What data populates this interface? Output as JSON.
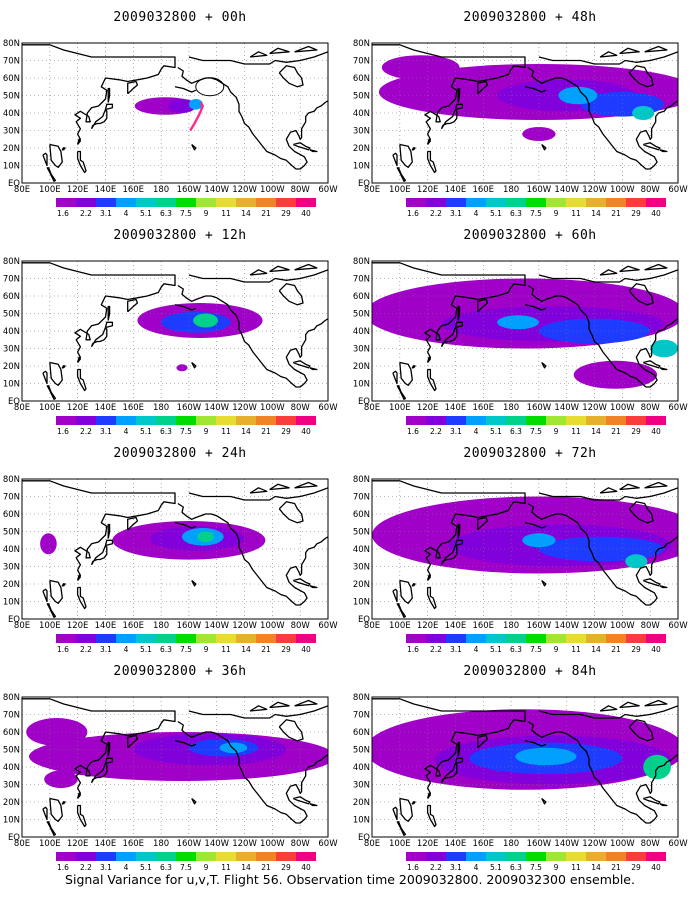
{
  "figure": {
    "caption": "Signal Variance for u,v,T. Flight 56. Observation time 2009032800. 2009032300 ensemble."
  },
  "panels": [
    {
      "title": "2009032800 + 00h",
      "lead_hours": 0
    },
    {
      "title": "2009032800 + 48h",
      "lead_hours": 48
    },
    {
      "title": "2009032800 + 12h",
      "lead_hours": 12
    },
    {
      "title": "2009032800 + 60h",
      "lead_hours": 60
    },
    {
      "title": "2009032800 + 24h",
      "lead_hours": 24
    },
    {
      "title": "2009032800 + 72h",
      "lead_hours": 72
    },
    {
      "title": "2009032800 + 36h",
      "lead_hours": 36
    },
    {
      "title": "2009032800 + 84h",
      "lead_hours": 84
    }
  ],
  "axes": {
    "lon_ticks": [
      "80E",
      "100E",
      "120E",
      "140E",
      "160E",
      "180",
      "160W",
      "140W",
      "120W",
      "100W",
      "80W",
      "60W"
    ],
    "lat_ticks": [
      "EQ",
      "10N",
      "20N",
      "30N",
      "40N",
      "50N",
      "60N",
      "70N",
      "80N"
    ],
    "lon_range": [
      80,
      300
    ],
    "lat_range": [
      0,
      80
    ],
    "grid": "dotted"
  },
  "colorbar": {
    "labels": [
      "1.6",
      "2.2",
      "3.1",
      "4",
      "5.1",
      "6.3",
      "7.5",
      "9",
      "11",
      "14",
      "21",
      "29",
      "40"
    ],
    "colors": [
      "#a000c8",
      "#8200dc",
      "#1e3cff",
      "#00a0ff",
      "#00c8c8",
      "#00d28c",
      "#00dc00",
      "#a0e632",
      "#e6dc32",
      "#e6af2d",
      "#f08228",
      "#fa3c3c",
      "#f00082"
    ]
  },
  "chart_data": {
    "type": "heatmap",
    "variable": "Signal Variance for u,v,T",
    "blobs": [
      [
        {
          "lon": 183,
          "lat": 44,
          "rx": 22,
          "ry": 5,
          "level": 0
        },
        {
          "lon": 195,
          "lat": 44,
          "rx": 10,
          "ry": 4,
          "level": 1
        },
        {
          "lon": 205,
          "lat": 45,
          "rx": 5,
          "ry": 3,
          "level": 3
        }
      ],
      [
        {
          "lon": 200,
          "lat": 52,
          "rx": 115,
          "ry": 16,
          "level": 0
        },
        {
          "lon": 115,
          "lat": 66,
          "rx": 28,
          "ry": 7,
          "level": 0
        },
        {
          "lon": 200,
          "lat": 28,
          "rx": 12,
          "ry": 4,
          "level": 0
        },
        {
          "lon": 220,
          "lat": 50,
          "rx": 50,
          "ry": 9,
          "level": 1
        },
        {
          "lon": 260,
          "lat": 45,
          "rx": 30,
          "ry": 7,
          "level": 2
        },
        {
          "lon": 228,
          "lat": 50,
          "rx": 14,
          "ry": 5,
          "level": 3
        },
        {
          "lon": 275,
          "lat": 40,
          "rx": 8,
          "ry": 4,
          "level": 4
        }
      ],
      [
        {
          "lon": 208,
          "lat": 46,
          "rx": 45,
          "ry": 10,
          "level": 0
        },
        {
          "lon": 205,
          "lat": 45,
          "rx": 25,
          "ry": 6,
          "level": 2
        },
        {
          "lon": 212,
          "lat": 46,
          "rx": 9,
          "ry": 4,
          "level": 5
        },
        {
          "lon": 195,
          "lat": 19,
          "rx": 4,
          "ry": 2,
          "level": 0
        }
      ],
      [
        {
          "lon": 190,
          "lat": 50,
          "rx": 115,
          "ry": 20,
          "level": 0
        },
        {
          "lon": 255,
          "lat": 15,
          "rx": 30,
          "ry": 8,
          "level": 0
        },
        {
          "lon": 210,
          "lat": 44,
          "rx": 80,
          "ry": 10,
          "level": 1
        },
        {
          "lon": 240,
          "lat": 40,
          "rx": 40,
          "ry": 7,
          "level": 2
        },
        {
          "lon": 185,
          "lat": 45,
          "rx": 15,
          "ry": 4,
          "level": 3
        },
        {
          "lon": 290,
          "lat": 30,
          "rx": 10,
          "ry": 5,
          "level": 4
        }
      ],
      [
        {
          "lon": 200,
          "lat": 45,
          "rx": 55,
          "ry": 11,
          "level": 0
        },
        {
          "lon": 99,
          "lat": 43,
          "rx": 6,
          "ry": 6,
          "level": 0
        },
        {
          "lon": 206,
          "lat": 46,
          "rx": 34,
          "ry": 7,
          "level": 1
        },
        {
          "lon": 210,
          "lat": 47,
          "rx": 15,
          "ry": 5,
          "level": 3
        },
        {
          "lon": 212,
          "lat": 47,
          "rx": 6,
          "ry": 3,
          "level": 5
        }
      ],
      [
        {
          "lon": 200,
          "lat": 48,
          "rx": 120,
          "ry": 22,
          "level": 0
        },
        {
          "lon": 215,
          "lat": 42,
          "rx": 80,
          "ry": 12,
          "level": 1
        },
        {
          "lon": 245,
          "lat": 40,
          "rx": 45,
          "ry": 7,
          "level": 2
        },
        {
          "lon": 200,
          "lat": 45,
          "rx": 12,
          "ry": 4,
          "level": 3
        },
        {
          "lon": 270,
          "lat": 33,
          "rx": 8,
          "ry": 4,
          "level": 4
        }
      ],
      [
        {
          "lon": 195,
          "lat": 46,
          "rx": 110,
          "ry": 14,
          "level": 0
        },
        {
          "lon": 105,
          "lat": 60,
          "rx": 22,
          "ry": 8,
          "level": 0
        },
        {
          "lon": 108,
          "lat": 33,
          "rx": 12,
          "ry": 5,
          "level": 0
        },
        {
          "lon": 215,
          "lat": 50,
          "rx": 55,
          "ry": 9,
          "level": 1
        },
        {
          "lon": 225,
          "lat": 51,
          "rx": 25,
          "ry": 5,
          "level": 2
        },
        {
          "lon": 232,
          "lat": 51,
          "rx": 10,
          "ry": 3,
          "level": 3
        }
      ],
      [
        {
          "lon": 190,
          "lat": 50,
          "rx": 115,
          "ry": 23,
          "level": 0
        },
        {
          "lon": 210,
          "lat": 44,
          "rx": 85,
          "ry": 14,
          "level": 1
        },
        {
          "lon": 205,
          "lat": 45,
          "rx": 55,
          "ry": 9,
          "level": 2
        },
        {
          "lon": 205,
          "lat": 46,
          "rx": 22,
          "ry": 5,
          "level": 3
        },
        {
          "lon": 285,
          "lat": 40,
          "rx": 10,
          "ry": 7,
          "level": 5
        }
      ]
    ],
    "flight_track": {
      "panel": 0,
      "lat": [
        46,
        44,
        40,
        34,
        30
      ],
      "lon": [
        208,
        210,
        208,
        204,
        201
      ]
    }
  }
}
